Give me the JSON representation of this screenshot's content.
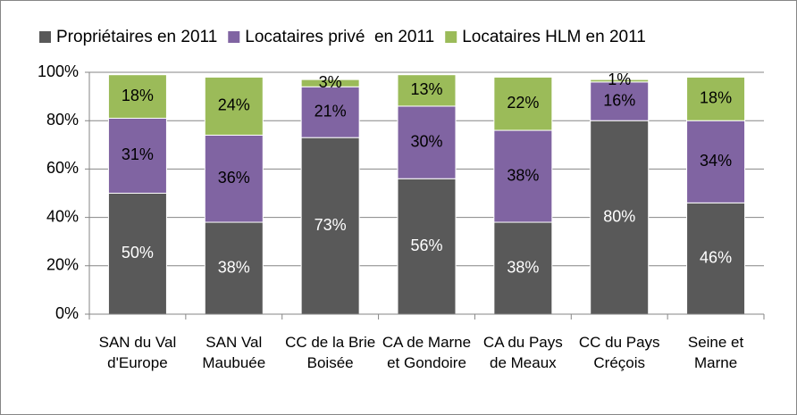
{
  "chart_data": {
    "type": "stacked_bar",
    "categories": [
      "SAN du Val d'Europe",
      "SAN Val Maubuée",
      "CC de la Brie Boisée",
      "CA de Marne et Gondoire",
      "CA du Pays de Meaux",
      "CC du Pays Créçois",
      "Seine et Marne"
    ],
    "series": [
      {
        "name": "Propriétaires en 2011",
        "color": "#595959",
        "values": [
          50,
          38,
          73,
          56,
          38,
          80,
          46
        ],
        "value_labels": [
          "50%",
          "38%",
          "73%",
          "56%",
          "38%",
          "80%",
          "46%"
        ]
      },
      {
        "name": "Locataires privé  en 2011",
        "color": "#8064a2",
        "values": [
          31,
          36,
          21,
          30,
          38,
          16,
          34
        ],
        "value_labels": [
          "31%",
          "36%",
          "21%",
          "30%",
          "38%",
          "16%",
          "34%"
        ]
      },
      {
        "name": "Locataires HLM en 2011",
        "color": "#9bbb59",
        "values": [
          18,
          24,
          3,
          13,
          22,
          1,
          18
        ],
        "value_labels": [
          "18%",
          "24%",
          "3%",
          "13%",
          "22%",
          "1%",
          "18%"
        ]
      }
    ],
    "ylim": [
      0,
      100
    ],
    "yticks": [
      {
        "value": 0,
        "label": "0%"
      },
      {
        "value": 20,
        "label": "20%"
      },
      {
        "value": 40,
        "label": "40%"
      },
      {
        "value": 60,
        "label": "60%"
      },
      {
        "value": 80,
        "label": "80%"
      },
      {
        "value": 100,
        "label": "100%"
      }
    ],
    "grid": true,
    "legend": "top"
  }
}
